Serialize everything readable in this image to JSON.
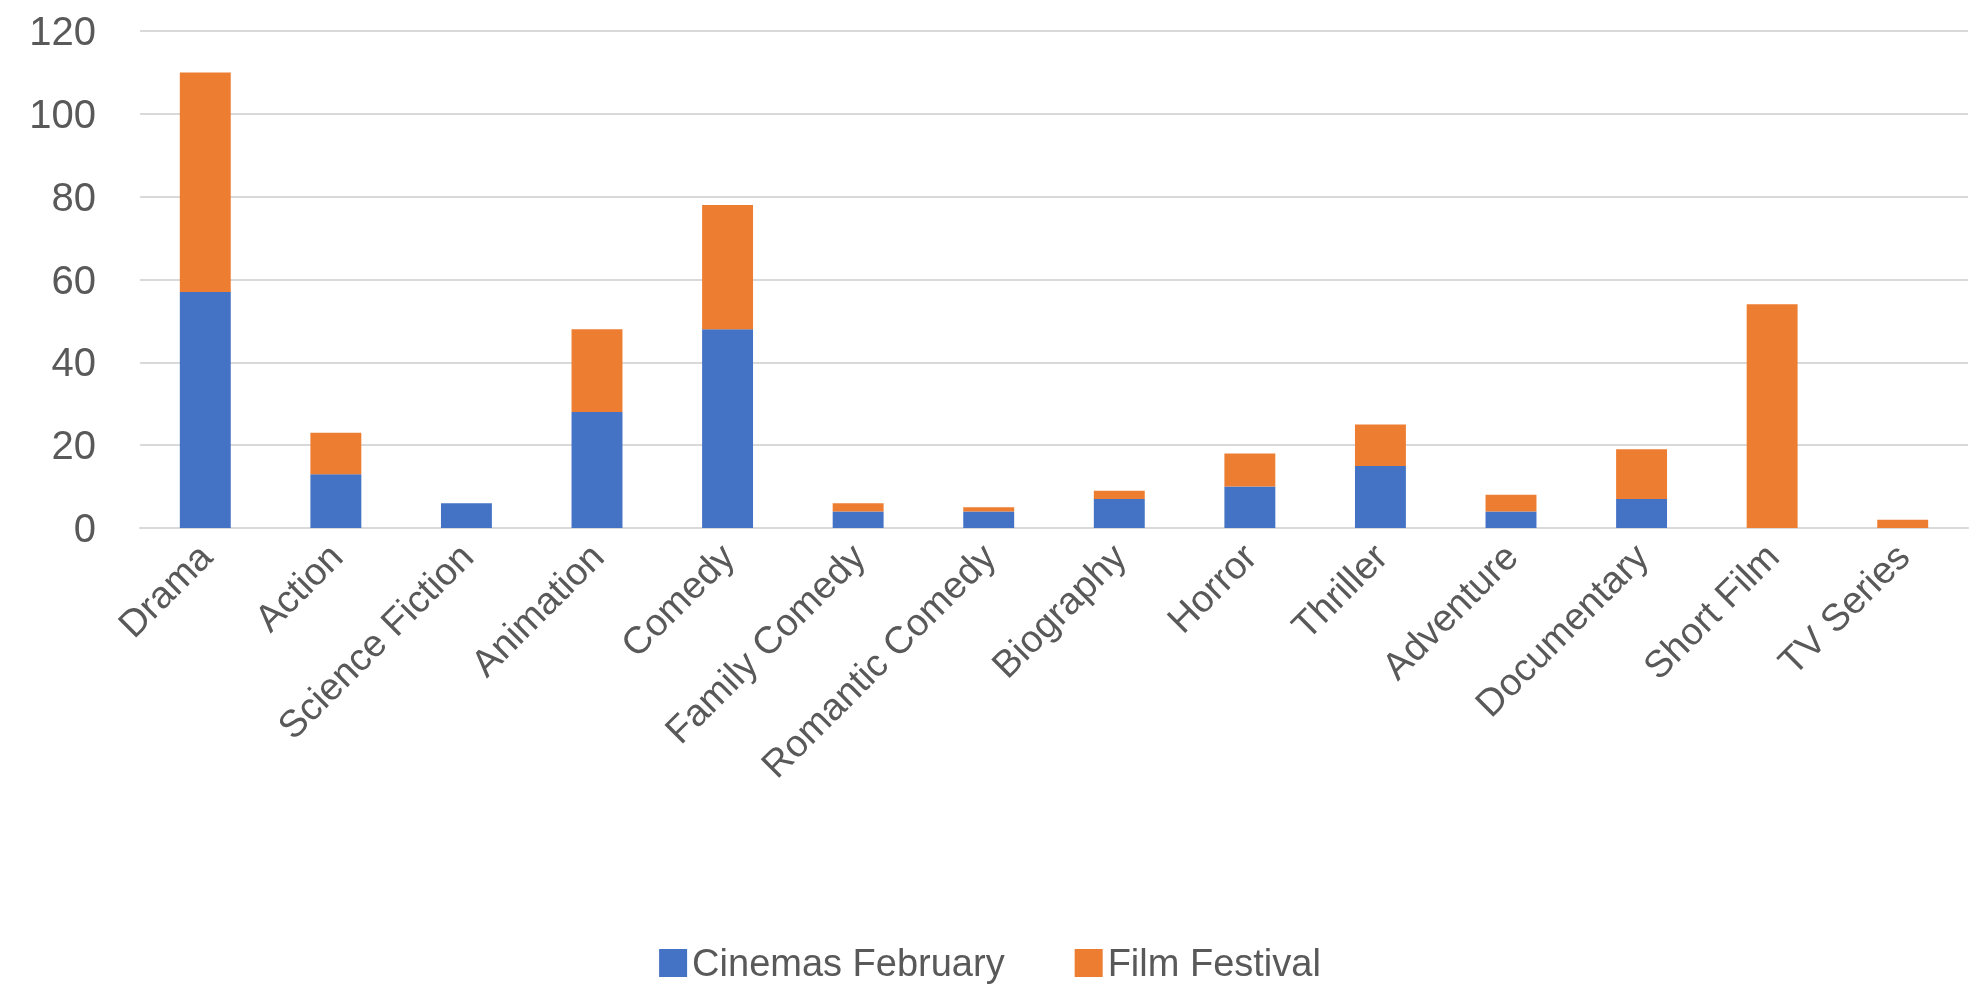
{
  "chart_data": {
    "type": "bar",
    "stacked": true,
    "categories": [
      "Drama",
      "Action",
      "Science Fiction",
      "Animation",
      "Comedy",
      "Family Comedy",
      "Romantic Comedy",
      "Biography",
      "Horror",
      "Thriller",
      "Adventure",
      "Documentary",
      "Short Film",
      "TV Series"
    ],
    "series": [
      {
        "name": "Cinemas February",
        "color": "#4472c4",
        "values": [
          57,
          13,
          6,
          28,
          48,
          4,
          4,
          7,
          10,
          15,
          4,
          7,
          0,
          0
        ]
      },
      {
        "name": "Film Festival",
        "color": "#ed7d31",
        "values": [
          53,
          10,
          0,
          20,
          30,
          2,
          1,
          2,
          8,
          10,
          4,
          12,
          54,
          2
        ]
      }
    ],
    "ylim": [
      0,
      120
    ],
    "yticks": [
      0,
      20,
      40,
      60,
      80,
      100,
      120
    ],
    "grid": "y",
    "legend": "bottom"
  }
}
